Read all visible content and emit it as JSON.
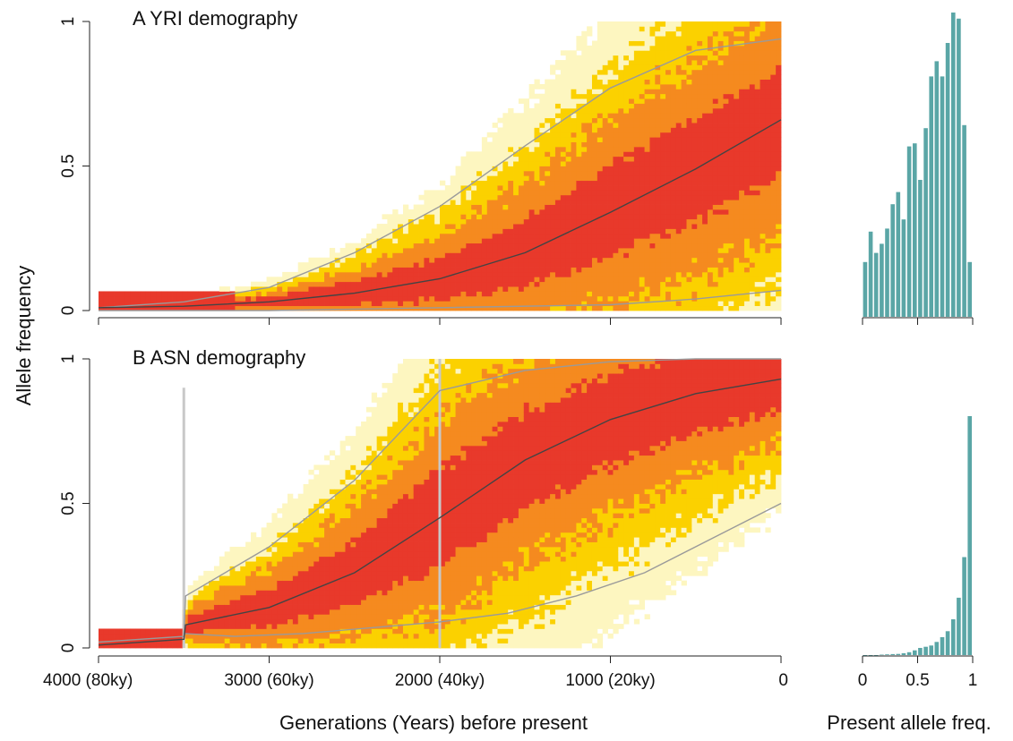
{
  "figure": {
    "ylabel": "Allele frequency",
    "xlabel": "Generations (Years) before present",
    "hist_xlabel": "Present allele freq."
  },
  "x_ticks": [
    "4000 (80ky)",
    "3000 (60ky)",
    "2000 (40ky)",
    "1000 (20ky)",
    "0"
  ],
  "y_ticks": [
    "0",
    "0.5",
    "1"
  ],
  "hist_ticks": [
    "0",
    "0.5",
    "1"
  ],
  "colors": {
    "dense": "#e8392b",
    "mid": "#f58a1f",
    "light": "#fbd100",
    "faint": "#fdf6c0",
    "quantile_line": "#9a9a9a",
    "median_line": "#444444",
    "marker_line": "#c8c8c8",
    "hist_bar": "#5aa6a6"
  },
  "chart_data": [
    {
      "type": "heatmap",
      "panel": "A",
      "title": "A  YRI demography",
      "xlabel": "Generations (Years) before present",
      "ylabel": "Allele frequency",
      "xlim": [
        4000,
        0
      ],
      "ylim": [
        0,
        1
      ],
      "x_tick_values": [
        4000,
        3000,
        2000,
        1000,
        0
      ],
      "y_tick_values": [
        0,
        0.5,
        1
      ],
      "median": {
        "x": [
          4000,
          3500,
          3000,
          2500,
          2000,
          1500,
          1000,
          500,
          0
        ],
        "y": [
          0.01,
          0.015,
          0.03,
          0.06,
          0.11,
          0.2,
          0.34,
          0.49,
          0.66
        ]
      },
      "upper_quantile": {
        "x": [
          4000,
          3500,
          3000,
          2500,
          2000,
          1500,
          1000,
          500,
          0
        ],
        "y": [
          0.01,
          0.03,
          0.08,
          0.2,
          0.36,
          0.57,
          0.77,
          0.9,
          0.94
        ]
      },
      "lower_quantile": {
        "x": [
          4000,
          3000,
          2000,
          1000,
          500,
          0
        ],
        "y": [
          0.0,
          0.0,
          0.01,
          0.02,
          0.04,
          0.07
        ]
      }
    },
    {
      "type": "bar",
      "panel": "A-hist",
      "xlabel": "Present allele freq.",
      "x_tick_values": [
        0,
        0.5,
        1
      ],
      "bin_centers": [
        0.025,
        0.075,
        0.125,
        0.175,
        0.225,
        0.275,
        0.325,
        0.375,
        0.425,
        0.475,
        0.525,
        0.575,
        0.625,
        0.675,
        0.725,
        0.775,
        0.825,
        0.875,
        0.925,
        0.975
      ],
      "values": [
        0.18,
        0.28,
        0.21,
        0.24,
        0.29,
        0.37,
        0.41,
        0.32,
        0.56,
        0.57,
        0.45,
        0.62,
        0.79,
        0.84,
        0.79,
        0.9,
        1.0,
        0.98,
        0.63,
        0.18
      ]
    },
    {
      "type": "heatmap",
      "panel": "B",
      "title": "B  ASN demography",
      "xlabel": "Generations (Years) before present",
      "ylabel": "Allele frequency",
      "xlim": [
        4000,
        0
      ],
      "ylim": [
        0,
        1
      ],
      "x_tick_values": [
        4000,
        3000,
        2000,
        1000,
        0
      ],
      "y_tick_values": [
        0,
        0.5,
        1
      ],
      "vertical_markers": [
        {
          "x": 3500,
          "y": [
            0,
            0.9
          ]
        },
        {
          "x": 2000,
          "y": [
            0,
            1.0
          ]
        }
      ],
      "median": {
        "x": [
          4000,
          3500,
          3490,
          3000,
          2500,
          2000,
          1500,
          1000,
          500,
          0
        ],
        "y": [
          0.01,
          0.03,
          0.08,
          0.14,
          0.26,
          0.45,
          0.65,
          0.79,
          0.88,
          0.93
        ]
      },
      "upper_quantile": {
        "x": [
          4000,
          3500,
          3490,
          3000,
          2500,
          2000,
          1500,
          1000,
          500,
          0
        ],
        "y": [
          0.02,
          0.04,
          0.18,
          0.35,
          0.58,
          0.89,
          0.96,
          0.99,
          1.0,
          1.0
        ]
      },
      "lower_quantile": {
        "x": [
          3500,
          3200,
          2800,
          2400,
          2000,
          1600,
          1200,
          800,
          400,
          0
        ],
        "y": [
          0.05,
          0.04,
          0.05,
          0.07,
          0.09,
          0.12,
          0.18,
          0.26,
          0.38,
          0.5
        ]
      }
    },
    {
      "type": "bar",
      "panel": "B-hist",
      "xlabel": "Present allele freq.",
      "x_tick_values": [
        0,
        0.5,
        1
      ],
      "bin_centers": [
        0.025,
        0.075,
        0.125,
        0.175,
        0.225,
        0.275,
        0.325,
        0.375,
        0.425,
        0.475,
        0.525,
        0.575,
        0.625,
        0.675,
        0.725,
        0.775,
        0.825,
        0.875,
        0.925,
        0.975
      ],
      "values": [
        0,
        0,
        0,
        0.002,
        0.003,
        0.004,
        0.005,
        0.008,
        0.012,
        0.02,
        0.03,
        0.035,
        0.04,
        0.055,
        0.075,
        0.1,
        0.15,
        0.24,
        0.41,
        1.0
      ]
    }
  ]
}
